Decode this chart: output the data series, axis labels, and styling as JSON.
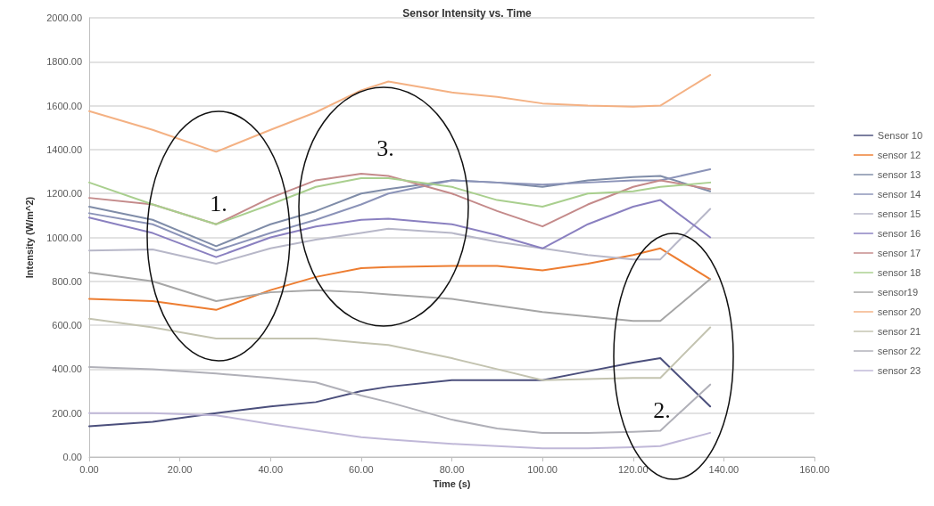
{
  "chart_data": {
    "type": "line",
    "title": "Sensor Intensity vs. Time",
    "xlabel": "Time (s)",
    "ylabel": "Intensity (W/m^2)",
    "x": [
      0,
      14,
      28,
      40,
      50,
      60,
      66,
      80,
      90,
      100,
      110,
      120,
      126,
      137
    ],
    "series": [
      {
        "name": "Sensor 10",
        "color": "#4b4f7c",
        "values": [
          140,
          160,
          200,
          230,
          250,
          300,
          320,
          350,
          350,
          350,
          390,
          430,
          450,
          230
        ]
      },
      {
        "name": "sensor 12",
        "color": "#ed7d31",
        "values": [
          720,
          710,
          670,
          760,
          820,
          860,
          865,
          870,
          870,
          850,
          880,
          920,
          950,
          810
        ]
      },
      {
        "name": "sensor 13",
        "color": "#7f8ca8",
        "values": [
          1140,
          1080,
          960,
          1060,
          1120,
          1200,
          1220,
          1260,
          1250,
          1230,
          1260,
          1275,
          1280,
          1210
        ]
      },
      {
        "name": "sensor 14",
        "color": "#8b93b8",
        "values": [
          1110,
          1060,
          940,
          1020,
          1080,
          1150,
          1200,
          1260,
          1250,
          1240,
          1250,
          1260,
          1260,
          1310
        ]
      },
      {
        "name": "sensor 15",
        "color": "#b7b7c8",
        "values": [
          940,
          945,
          880,
          950,
          990,
          1020,
          1040,
          1020,
          980,
          950,
          920,
          900,
          900,
          1130
        ]
      },
      {
        "name": "sensor 16",
        "color": "#8a80c0",
        "values": [
          1090,
          1020,
          910,
          1000,
          1050,
          1080,
          1085,
          1060,
          1010,
          950,
          1060,
          1140,
          1170,
          1000
        ]
      },
      {
        "name": "sensor 17",
        "color": "#c48a8a",
        "values": [
          1180,
          1150,
          1060,
          1180,
          1260,
          1290,
          1280,
          1200,
          1120,
          1050,
          1150,
          1230,
          1260,
          1220
        ]
      },
      {
        "name": "sensor 18",
        "color": "#a9cf8e",
        "values": [
          1250,
          1150,
          1060,
          1150,
          1230,
          1270,
          1270,
          1230,
          1170,
          1140,
          1200,
          1210,
          1230,
          1250
        ]
      },
      {
        "name": "sensor19",
        "color": "#a6a6a6",
        "values": [
          840,
          800,
          710,
          750,
          760,
          750,
          740,
          720,
          690,
          660,
          640,
          620,
          620,
          810
        ]
      },
      {
        "name": "sensor 20",
        "color": "#f4b183",
        "values": [
          1575,
          1490,
          1390,
          1490,
          1570,
          1670,
          1710,
          1660,
          1640,
          1610,
          1600,
          1595,
          1600,
          1740
        ]
      },
      {
        "name": "sensor 21",
        "color": "#c3c3b0",
        "values": [
          630,
          590,
          540,
          540,
          540,
          520,
          510,
          450,
          400,
          350,
          355,
          360,
          360,
          590
        ]
      },
      {
        "name": "sensor 22",
        "color": "#b0b0b8",
        "values": [
          410,
          400,
          380,
          360,
          340,
          280,
          250,
          170,
          130,
          110,
          110,
          115,
          120,
          330
        ]
      },
      {
        "name": "sensor 23",
        "color": "#c0b8d8",
        "values": [
          200,
          200,
          190,
          150,
          120,
          90,
          80,
          60,
          50,
          40,
          40,
          45,
          50,
          110
        ]
      }
    ],
    "xlim": [
      0,
      160
    ],
    "xticks": [
      {
        "value": 0,
        "label": "0.00"
      },
      {
        "value": 20,
        "label": "20.00"
      },
      {
        "value": 40,
        "label": "40.00"
      },
      {
        "value": 60,
        "label": "60.00"
      },
      {
        "value": 80,
        "label": "80.00"
      },
      {
        "value": 100,
        "label": "100.00"
      },
      {
        "value": 120,
        "label": "120.00"
      },
      {
        "value": 140,
        "label": "140.00"
      },
      {
        "value": 160,
        "label": "160.00"
      }
    ],
    "ylim": [
      0,
      2000
    ],
    "yticks": [
      {
        "value": 0,
        "label": "0.00"
      },
      {
        "value": 200,
        "label": "200.00"
      },
      {
        "value": 400,
        "label": "400.00"
      },
      {
        "value": 600,
        "label": "600.00"
      },
      {
        "value": 800,
        "label": "800.00"
      },
      {
        "value": 1000,
        "label": "1000.00"
      },
      {
        "value": 1200,
        "label": "1200.00"
      },
      {
        "value": 1400,
        "label": "1400.00"
      },
      {
        "value": 1600,
        "label": "1600.00"
      },
      {
        "value": 1800,
        "label": "1800.00"
      },
      {
        "value": 2000,
        "label": "2000.00"
      }
    ],
    "annotations": [
      "1.",
      "2.",
      "3."
    ],
    "grid": "y",
    "legend": "right",
    "marker": "none",
    "line_style": "solid"
  }
}
